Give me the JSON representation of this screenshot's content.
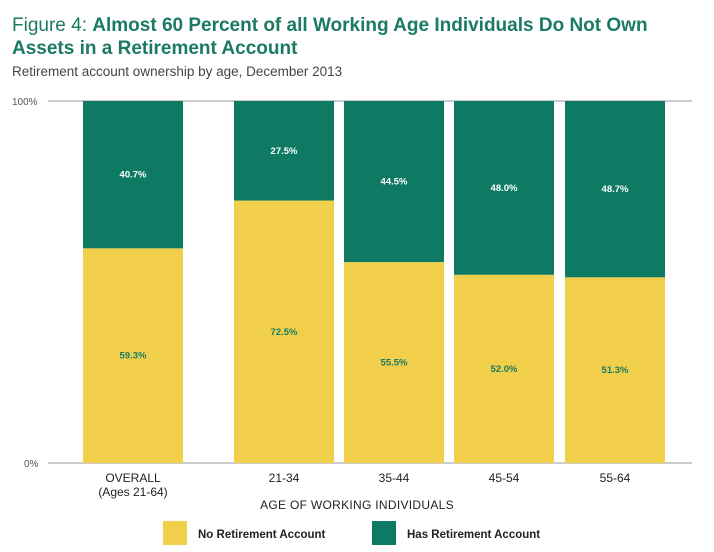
{
  "header": {
    "title_prefix": "Figure 4: ",
    "title_main": "Almost 60 Percent of all Working Age Individuals Do Not Own Assets in a Retirement Account",
    "subtitle": "Retirement account ownership by age, December 2013"
  },
  "colors": {
    "no_retirement": "#f2cf4a",
    "has_retirement": "#0e7a63",
    "axis": "#999999"
  },
  "chart_data": {
    "type": "bar",
    "stacked": true,
    "categories": [
      [
        "OVERALL",
        "(Ages 21-64)"
      ],
      [
        "21-34"
      ],
      [
        "35-44"
      ],
      [
        "45-54"
      ],
      [
        "55-64"
      ]
    ],
    "series": [
      {
        "name": "No Retirement Account",
        "values": [
          59.3,
          72.5,
          55.5,
          52.0,
          51.3
        ],
        "labels": [
          "59.3%",
          "72.5%",
          "55.5%",
          "52.0%",
          "51.3%"
        ]
      },
      {
        "name": "Has Retirement Account",
        "values": [
          40.7,
          27.5,
          44.5,
          48.0,
          48.7
        ],
        "labels": [
          "40.7%",
          "27.5%",
          "44.5%",
          "48.0%",
          "48.7%"
        ]
      }
    ],
    "ylim": [
      0,
      100
    ],
    "yticks": [
      "0%",
      "100%"
    ],
    "xlabel": "AGE OF WORKING INDIVIDUALS",
    "ylabel": "",
    "legend_position": "bottom"
  }
}
